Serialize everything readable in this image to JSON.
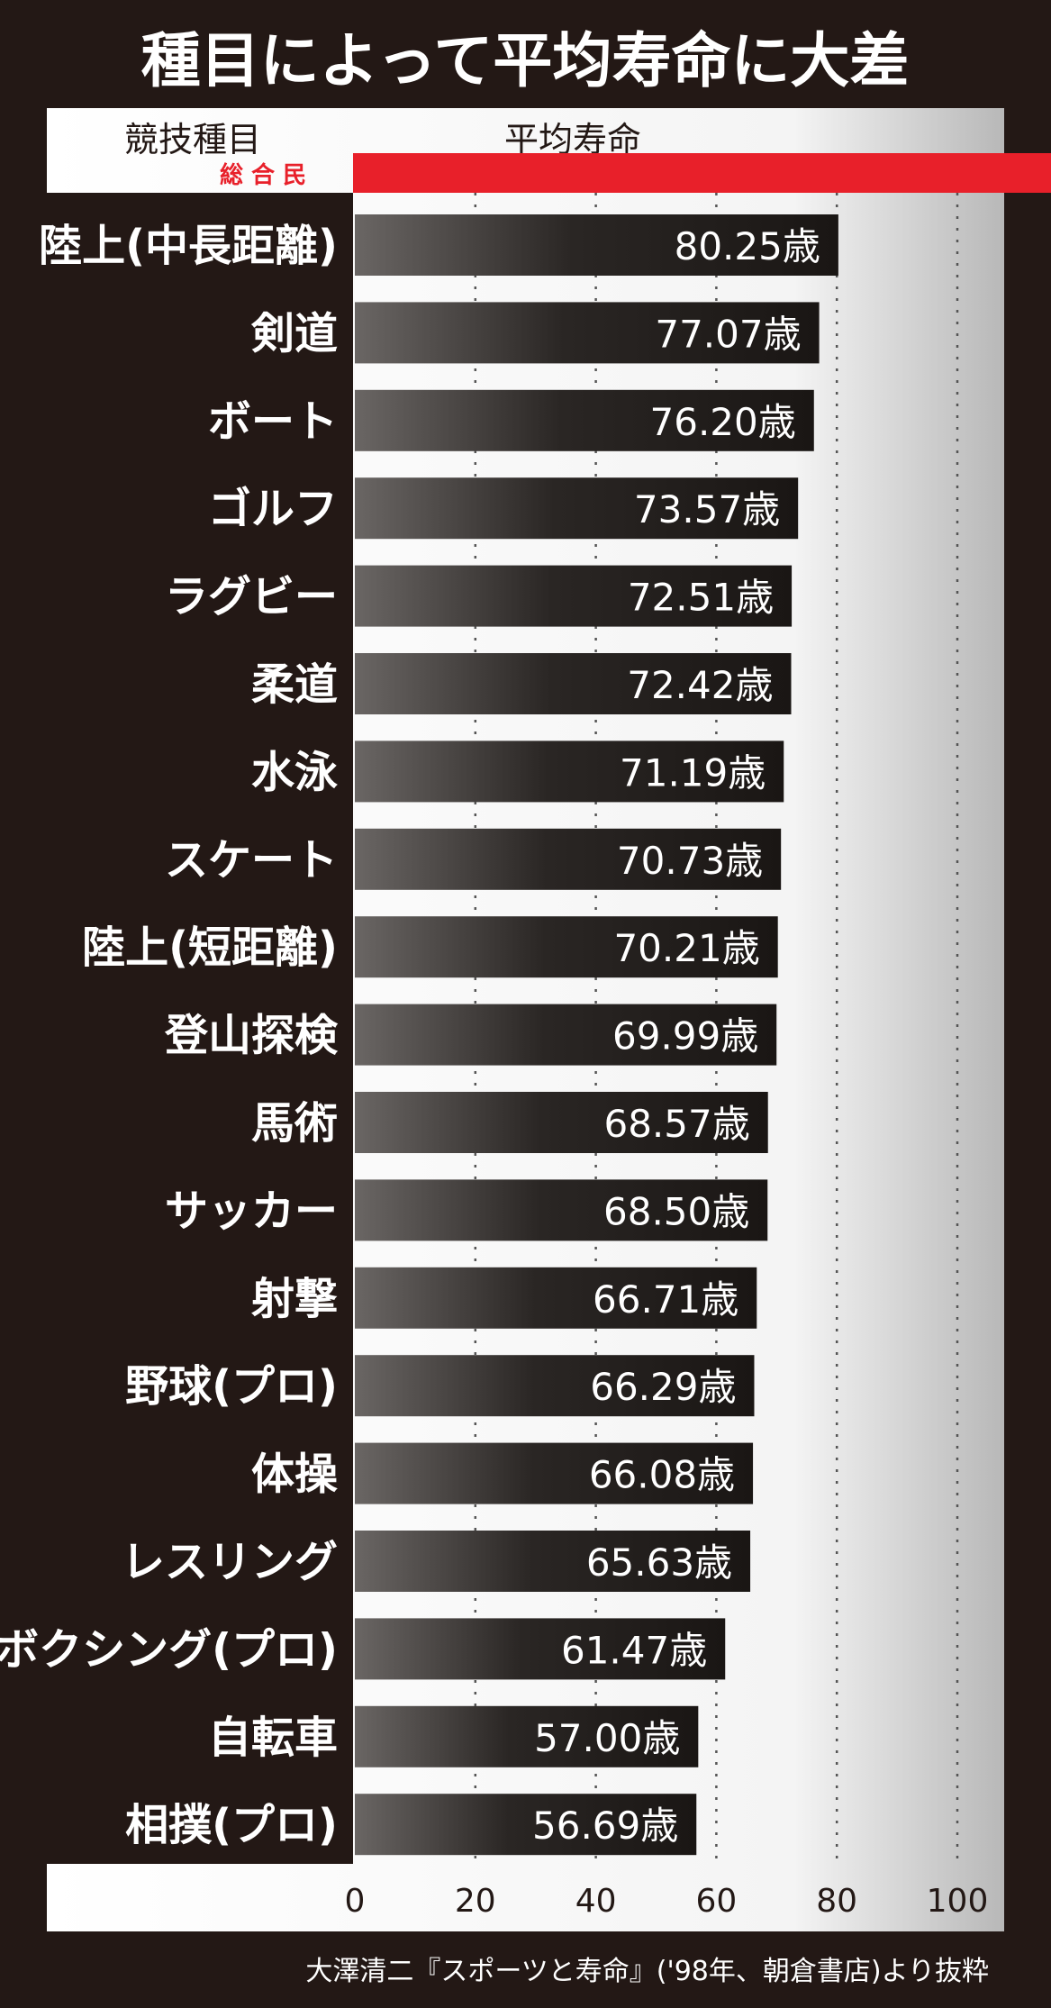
{
  "chart_data": {
    "type": "bar",
    "orientation": "horizontal",
    "title": "種目によって平均寿命に大差",
    "column_headers": {
      "category": "競技種目",
      "value": "平均寿命"
    },
    "categories": [
      "陸上(中長距離)",
      "剣道",
      "ボート",
      "ゴルフ",
      "ラグビー",
      "柔道",
      "水泳",
      "スケート",
      "陸上(短距離)",
      "登山探検",
      "馬術",
      "サッカー",
      "射撃",
      "野球(プロ)",
      "体操",
      "レスリング",
      "ボクシング(プロ)",
      "自転車",
      "相撲(プロ)"
    ],
    "values": [
      80.25,
      77.07,
      76.2,
      73.57,
      72.51,
      72.42,
      71.19,
      70.73,
      70.21,
      69.99,
      68.57,
      68.5,
      66.71,
      66.29,
      66.08,
      65.63,
      61.47,
      57.0,
      56.69
    ],
    "value_labels": [
      "80.25歳",
      "77.07歳",
      "76.20歳",
      "73.57歳",
      "72.51歳",
      "72.42歳",
      "71.19歳",
      "70.73歳",
      "70.21歳",
      "69.99歳",
      "68.57歳",
      "68.50歳",
      "66.71歳",
      "66.29歳",
      "66.08歳",
      "65.63歳",
      "61.47歳",
      "57.00歳",
      "56.69歳"
    ],
    "xlim": [
      0,
      100
    ],
    "xticks": [
      "0",
      "20",
      "40",
      "60",
      "80",
      "100"
    ],
    "grid": true,
    "source": "大澤清二『スポーツと寿命』('98年、朝倉書店)より抜粋"
  },
  "watermark": "総 合 民",
  "colors": {
    "background": "#231815",
    "panel": "#ffffff",
    "bar": "#2a2422",
    "watermark_red": "#e8202a"
  }
}
